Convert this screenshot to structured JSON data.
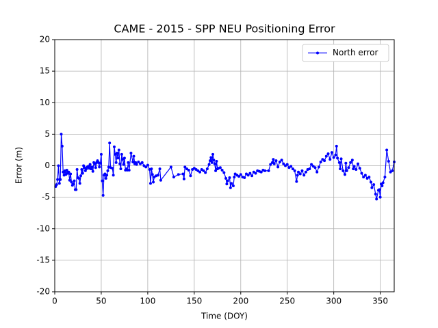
{
  "chart_data": {
    "type": "line",
    "title": "CAME - 2015 - SPP NEU Positioning Error",
    "xlabel": "Time (DOY)",
    "ylabel": "Error (m)",
    "x": [
      1,
      2,
      3,
      4,
      5,
      6,
      7,
      8,
      9,
      10,
      11,
      12,
      13,
      14,
      15,
      16,
      17,
      18,
      19,
      20,
      21,
      22,
      23,
      24,
      25,
      26,
      27,
      28,
      29,
      30,
      31,
      32,
      33,
      34,
      35,
      36,
      37,
      38,
      39,
      40,
      41,
      42,
      43,
      44,
      45,
      46,
      47,
      48,
      49,
      50,
      51,
      52,
      53,
      54,
      55,
      56,
      57,
      58,
      59,
      60,
      62,
      63,
      64,
      65,
      66,
      67,
      68,
      69,
      70,
      71,
      72,
      73,
      74,
      75,
      76,
      77,
      78,
      79,
      80,
      82,
      84,
      85,
      86,
      87,
      88,
      90,
      92,
      94,
      96,
      98,
      100,
      102,
      103,
      104,
      105,
      106,
      107,
      109,
      111,
      113,
      114,
      125,
      128,
      133,
      138,
      139,
      140,
      142,
      144,
      146,
      148,
      150,
      152,
      154,
      156,
      158,
      160,
      162,
      164,
      166,
      167,
      168,
      169,
      170,
      171,
      172,
      173,
      174,
      175,
      176,
      178,
      180,
      182,
      184,
      185,
      186,
      188,
      189,
      190,
      192,
      193,
      194,
      196,
      198,
      200,
      202,
      204,
      206,
      208,
      210,
      212,
      214,
      216,
      218,
      220,
      222,
      224,
      226,
      230,
      232,
      234,
      235,
      236,
      238,
      240,
      242,
      244,
      246,
      248,
      250,
      252,
      254,
      256,
      258,
      260,
      261,
      262,
      264,
      266,
      268,
      270,
      272,
      274,
      276,
      278,
      280,
      282,
      284,
      286,
      288,
      290,
      292,
      294,
      296,
      298,
      300,
      302,
      303,
      304,
      306,
      307,
      308,
      310,
      312,
      313,
      314,
      316,
      318,
      320,
      321,
      322,
      324,
      326,
      328,
      330,
      332,
      334,
      336,
      338,
      340,
      341,
      343,
      345,
      346,
      348,
      349,
      350,
      351,
      352,
      353,
      355,
      357,
      359,
      361,
      363,
      365
    ],
    "series": [
      {
        "name": "North error",
        "color": "#0000ff",
        "values": [
          -3.3,
          -3.0,
          -2.2,
          0,
          -2.8,
          -2.2,
          5.0,
          3.1,
          -1.0,
          -1.5,
          -0.8,
          -1.4,
          -0.7,
          -1.2,
          -1.0,
          -2.3,
          -1.3,
          -2.6,
          -3.1,
          -2.9,
          -2.4,
          -3.8,
          -3.8,
          -0.6,
          -1.9,
          -2.0,
          -2.8,
          -1.6,
          -0.6,
          -1.2,
          0,
          -0.3,
          -0.8,
          -0.5,
          -0.2,
          -0.1,
          -0.4,
          0.2,
          -0.5,
          -0.2,
          -0.9,
          0.5,
          0.3,
          -0.3,
          0.5,
          0.8,
          0.5,
          -0.2,
          0.4,
          1.8,
          -2.4,
          -4.7,
          -1.5,
          -1.3,
          -2.0,
          -1.5,
          -0.8,
          -0.2,
          3.6,
          -0.3,
          -0.4,
          -1.5,
          3.0,
          1.8,
          0.5,
          2.0,
          1.2,
          2.5,
          0.3,
          -0.5,
          1.8,
          1.0,
          0.2,
          1.2,
          -0.7,
          -0.5,
          -0.7,
          0.5,
          -0.7,
          2.0,
          0.6,
          1.5,
          0.3,
          0.5,
          0.2,
          0.6,
          0.3,
          0.5,
          0,
          -0.2,
          0.1,
          -0.6,
          -2.8,
          -0.5,
          -1.4,
          -2.6,
          -1.8,
          -1.6,
          -1.5,
          -0.5,
          -2.3,
          -0.2,
          -1.8,
          -1.4,
          -1.3,
          -2.1,
          -0.2,
          -0.5,
          -0.7,
          -1.6,
          -0.6,
          -0.4,
          -0.6,
          -0.8,
          -1.0,
          -0.6,
          -0.8,
          -1.1,
          -0.5,
          0.2,
          0.8,
          1.3,
          0.5,
          1.8,
          0.9,
          0.3,
          -0.8,
          0.7,
          -0.5,
          -0.4,
          -0.3,
          -0.7,
          -1.1,
          -2.0,
          -2.9,
          -2.4,
          -1.9,
          -3.5,
          -2.8,
          -3.2,
          -1.8,
          -1.3,
          -1.5,
          -1.7,
          -1.4,
          -1.8,
          -1.9,
          -1.3,
          -1.5,
          -1.2,
          -1.6,
          -1.0,
          -1.2,
          -0.8,
          -0.9,
          -1.0,
          -0.7,
          -0.8,
          -0.8,
          0.2,
          0.5,
          1.0,
          0.3,
          0.8,
          -0.2,
          0.6,
          0.9,
          0.3,
          0.0,
          0.2,
          -0.3,
          -0.1,
          -0.5,
          -0.8,
          -2.5,
          -1.5,
          -1.0,
          -1.3,
          -0.8,
          -1.5,
          -1.0,
          -0.6,
          -0.5,
          0.2,
          -0.1,
          -0.3,
          -1.0,
          -0.2,
          0.6,
          1.0,
          0.8,
          1.5,
          1.9,
          1.0,
          2.1,
          1.3,
          1.7,
          3.1,
          1.2,
          0.5,
          -0.5,
          1.1,
          -0.8,
          -1.4,
          0.4,
          -0.8,
          -0.3,
          0.5,
          0.9,
          -0.5,
          -0.1,
          -0.6,
          0.3,
          -0.4,
          -1.2,
          -1.8,
          -1.5,
          -2.0,
          -1.8,
          -2.6,
          -3.5,
          -3.0,
          -4.5,
          -5.3,
          -3.9,
          -3.8,
          -5.0,
          -2.9,
          -3.2,
          -2.7,
          -1.8,
          2.5,
          0.7,
          -1.0,
          -0.8,
          0.6
        ]
      }
    ],
    "xlim": [
      0,
      365
    ],
    "ylim": [
      -20,
      20
    ],
    "xticks": [
      0,
      50,
      100,
      150,
      200,
      250,
      300,
      350
    ],
    "yticks": [
      -20,
      -15,
      -10,
      -5,
      0,
      5,
      10,
      15,
      20
    ],
    "grid": true,
    "legend": "upper right"
  }
}
